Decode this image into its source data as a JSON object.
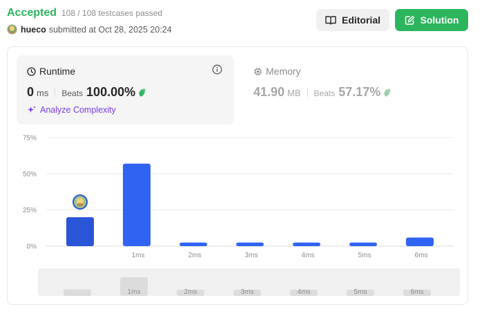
{
  "header": {
    "status": "Accepted",
    "testcases": "108 / 108 testcases passed",
    "username": "hueco",
    "submitted_text": "submitted at Oct 28, 2025 20:24",
    "editorial_label": "Editorial",
    "solution_label": "Solution"
  },
  "runtime": {
    "title": "Runtime",
    "value": "0",
    "unit": "ms",
    "beats_label": "Beats",
    "beats_pct": "100.00%",
    "analyze_label": "Analyze Complexity"
  },
  "memory": {
    "title": "Memory",
    "value": "41.90",
    "unit": "MB",
    "beats_label": "Beats",
    "beats_pct": "57.17%"
  },
  "colors": {
    "accent_green": "#2db55d",
    "bar_blue": "#3163f2",
    "bar_selected": "#2a55d6"
  },
  "chart_data": {
    "type": "bar",
    "categories": [
      "",
      "1ms",
      "2ms",
      "3ms",
      "4ms",
      "5ms",
      "6ms"
    ],
    "values": [
      20,
      57,
      2.5,
      2.5,
      2.5,
      2.5,
      6
    ],
    "selected_index": 0,
    "yticks": [
      "75%",
      "50%",
      "25%",
      "0%"
    ],
    "ylim": [
      0,
      75
    ],
    "grid": true
  },
  "navigator": {
    "categories": [
      "",
      "1ms",
      "2ms",
      "3ms",
      "4ms",
      "5ms",
      "6ms"
    ],
    "values": [
      20,
      57,
      2.5,
      2.5,
      2.5,
      2.5,
      6
    ]
  }
}
